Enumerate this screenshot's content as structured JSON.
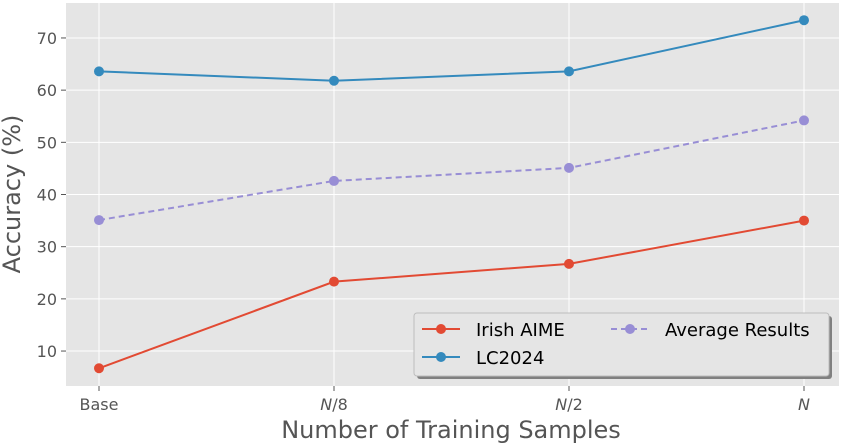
{
  "chart_data": {
    "type": "line",
    "title": "",
    "xlabel": "Number of Training Samples",
    "ylabel": "Accuracy (%)",
    "categories": [
      {
        "label": "Base",
        "italic_prefix": "",
        "suffix": "Base"
      },
      {
        "label": "N/8",
        "italic_prefix": "N",
        "suffix": "/8"
      },
      {
        "label": "N/2",
        "italic_prefix": "N",
        "suffix": "/2"
      },
      {
        "label": "N",
        "italic_prefix": "N",
        "suffix": ""
      }
    ],
    "ylim": [
      3.3,
      76.7
    ],
    "yticks": [
      10,
      20,
      30,
      40,
      50,
      60,
      70
    ],
    "grid": true,
    "legend_position": "lower-right",
    "series": [
      {
        "name": "Irish AIME",
        "values": [
          6.7,
          23.3,
          26.7,
          35.0
        ],
        "color": "#E24A33",
        "dash": "solid"
      },
      {
        "name": "LC2024",
        "values": [
          63.6,
          61.8,
          63.6,
          73.4
        ],
        "color": "#348ABD",
        "dash": "solid"
      },
      {
        "name": "Average Results",
        "values": [
          35.1,
          42.6,
          45.1,
          54.2
        ],
        "color": "#988ED5",
        "dash": "dashed"
      }
    ]
  },
  "colors": {
    "plot_background": "#E5E5E5",
    "grid": "#FFFFFF",
    "text": "#555555"
  }
}
